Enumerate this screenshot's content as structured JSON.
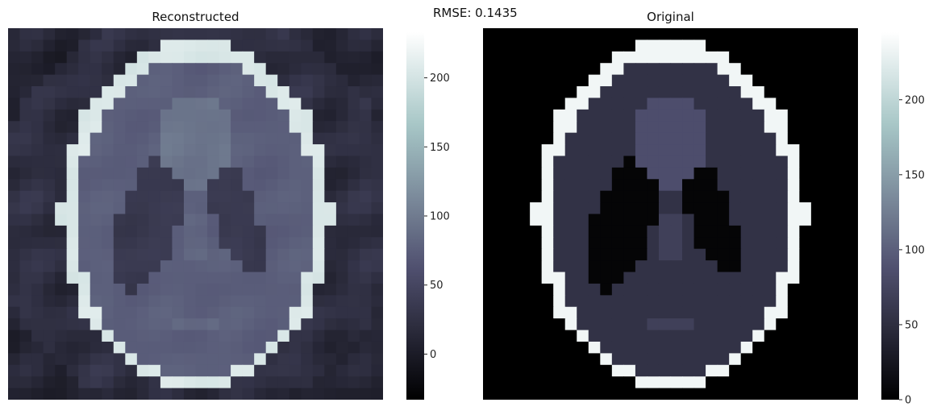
{
  "suptitle": "RMSE: 0.1435",
  "colormap": "bone",
  "chart_data": [
    {
      "type": "heatmap",
      "title": "Reconstructed",
      "grid_size": [
        32,
        32
      ],
      "colorbar": {
        "range": [
          -33,
          233
        ],
        "ticks": [
          0,
          50,
          100,
          150,
          200
        ]
      },
      "phantom_levels": {
        "background": 18,
        "skull": 205,
        "brain": 75,
        "ventricles": 35,
        "upper_blob": 95,
        "small_features": 85
      },
      "artifacts": true
    },
    {
      "type": "heatmap",
      "title": "Original",
      "grid_size": [
        32,
        32
      ],
      "colorbar": {
        "range": [
          0,
          245
        ],
        "ticks": [
          0,
          50,
          100,
          150,
          200
        ]
      },
      "phantom_levels": {
        "background": 0,
        "skull": 235,
        "brain": 55,
        "ventricles": 5,
        "upper_blob": 85,
        "small_features": 70
      },
      "artifacts": false
    }
  ]
}
